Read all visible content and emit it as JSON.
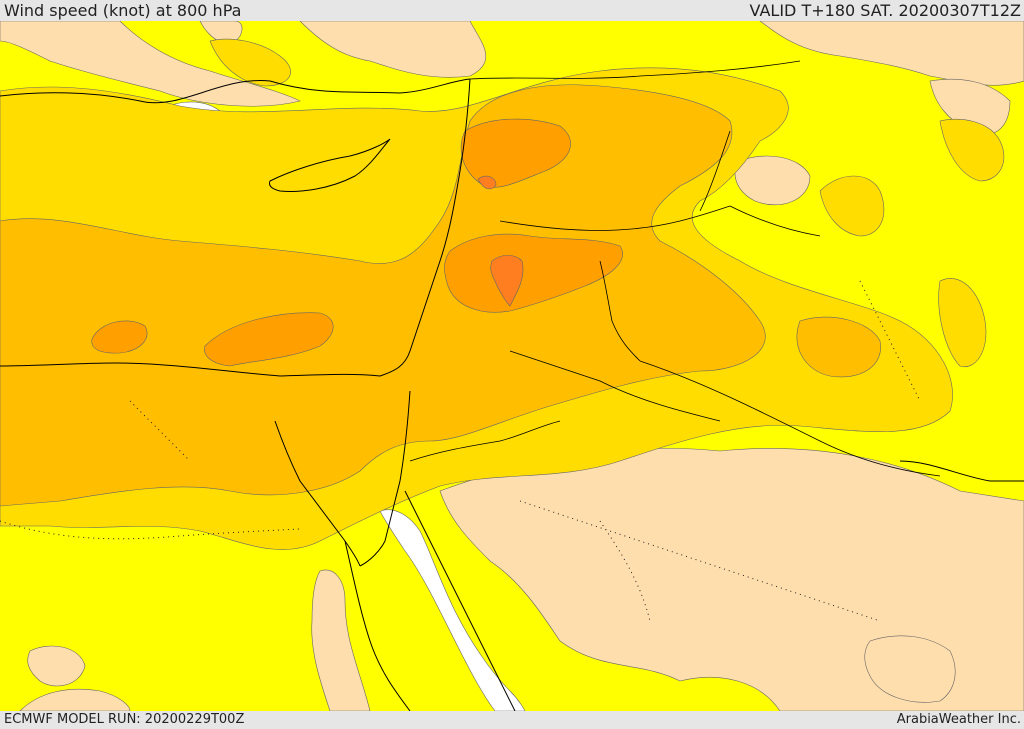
{
  "header": {
    "title": "Wind speed (knot) at 800 hPa",
    "valid": "VALID T+180 SAT. 20200307T12Z"
  },
  "footer": {
    "model_run": "ECMWF MODEL RUN: 20200229T00Z",
    "credit": "ArabiaWeather Inc."
  },
  "colors": {
    "calm": "#ffffff",
    "light": "#ffdead",
    "moderate": "#ffff00",
    "fresh": "#ffdd00",
    "strong": "#ffbf00",
    "gale": "#ff9f00",
    "storm": "#ff7f20"
  }
}
